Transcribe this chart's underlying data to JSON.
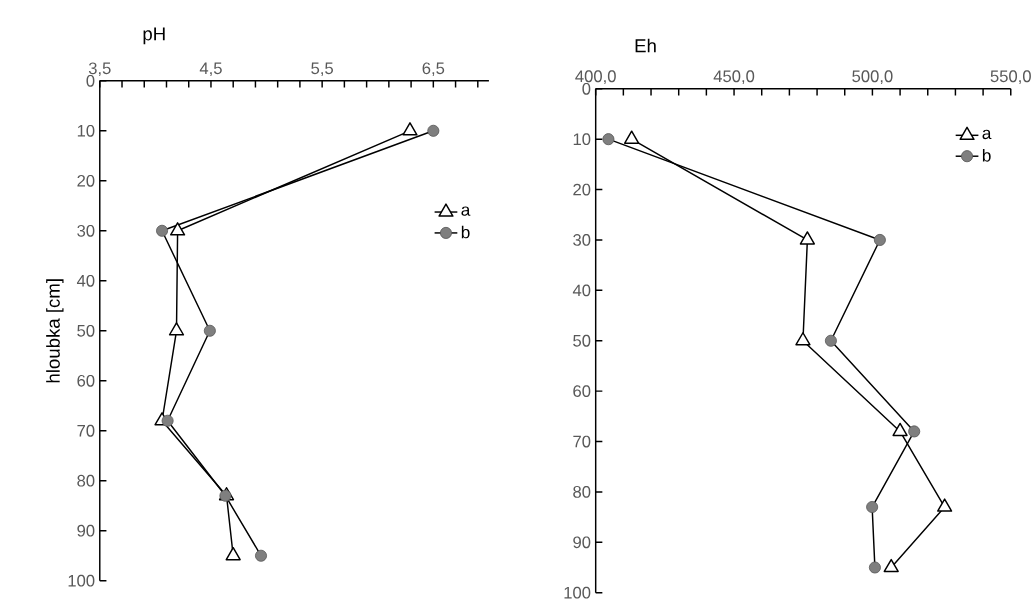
{
  "chart_data": [
    {
      "type": "line",
      "xlabel": "pH",
      "ylabel": "hloubka [cm]",
      "xlim": [
        3.5,
        7.0
      ],
      "xticks": [
        {
          "value": 3.5,
          "label": "3,5"
        },
        {
          "value": 3.7,
          "label": null
        },
        {
          "value": 3.9,
          "label": null
        },
        {
          "value": 4.1,
          "label": null
        },
        {
          "value": 4.3,
          "label": null
        },
        {
          "value": 4.5,
          "label": "4,5"
        },
        {
          "value": 4.7,
          "label": null
        },
        {
          "value": 4.9,
          "label": null
        },
        {
          "value": 5.1,
          "label": null
        },
        {
          "value": 5.3,
          "label": null
        },
        {
          "value": 5.5,
          "label": "5,5"
        },
        {
          "value": 5.7,
          "label": null
        },
        {
          "value": 5.9,
          "label": null
        },
        {
          "value": 6.1,
          "label": null
        },
        {
          "value": 6.3,
          "label": null
        },
        {
          "value": 6.5,
          "label": "6,5"
        },
        {
          "value": 6.7,
          "label": null
        },
        {
          "value": 6.9,
          "label": null
        }
      ],
      "ylim": [
        100,
        0
      ],
      "yticks": [
        0,
        10,
        20,
        30,
        40,
        50,
        60,
        70,
        80,
        90,
        100
      ],
      "grid": false,
      "legend": "right",
      "series": [
        {
          "name": "a",
          "color": "#000000",
          "marker": "triangle",
          "x": [
            6.29,
            4.2,
            4.19,
            4.06,
            4.64,
            4.7
          ],
          "values": [
            10,
            30,
            50,
            68,
            83,
            95
          ]
        },
        {
          "name": "b",
          "color": "#7f7f7f",
          "marker": "circle",
          "x": [
            6.5,
            4.06,
            4.49,
            4.11,
            4.63,
            4.95
          ],
          "values": [
            10,
            30,
            50,
            68,
            83,
            95
          ]
        }
      ]
    },
    {
      "type": "line",
      "xlabel": "Eh",
      "xlim": [
        400,
        550
      ],
      "xticks": [
        {
          "value": 400,
          "label": "400,0"
        },
        {
          "value": 410,
          "label": null
        },
        {
          "value": 420,
          "label": null
        },
        {
          "value": 430,
          "label": null
        },
        {
          "value": 440,
          "label": null
        },
        {
          "value": 450,
          "label": "450,0"
        },
        {
          "value": 460,
          "label": null
        },
        {
          "value": 470,
          "label": null
        },
        {
          "value": 480,
          "label": null
        },
        {
          "value": 490,
          "label": null
        },
        {
          "value": 500,
          "label": "500,0"
        },
        {
          "value": 510,
          "label": null
        },
        {
          "value": 520,
          "label": null
        },
        {
          "value": 530,
          "label": null
        },
        {
          "value": 540,
          "label": null
        },
        {
          "value": 550,
          "label": "550,0"
        }
      ],
      "ylim": [
        100,
        0
      ],
      "yticks": [
        0,
        10,
        20,
        30,
        40,
        50,
        60,
        70,
        80,
        90,
        100
      ],
      "grid": false,
      "legend": "top right",
      "series": [
        {
          "name": "a",
          "color": "#000000",
          "marker": "triangle",
          "x": [
            413.0,
            476.5,
            474.9,
            510.0,
            526.1,
            506.8
          ],
          "values": [
            10,
            30,
            50,
            68,
            83,
            95
          ]
        },
        {
          "name": "b",
          "color": "#7f7f7f",
          "marker": "circle",
          "x": [
            404.6,
            502.7,
            485.0,
            515.1,
            499.9,
            500.9
          ],
          "values": [
            10,
            30,
            50,
            68,
            83,
            95
          ]
        }
      ]
    }
  ]
}
